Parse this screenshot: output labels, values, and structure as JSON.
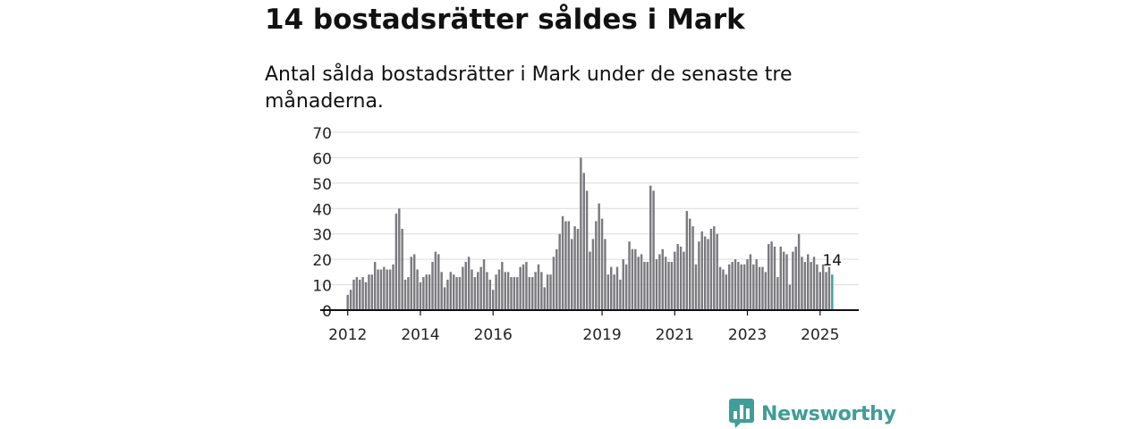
{
  "header": {
    "title": "14 bostadsrätter såldes i Mark",
    "subtitle": "Antal sålda bostadsrätter i Mark under de senaste tre månaderna."
  },
  "brand": {
    "name": "Newsworthy",
    "icon": "newsworthy-logo-icon",
    "color": "#3f9e97"
  },
  "chart_data": {
    "type": "bar",
    "start": "2012-01",
    "frequency": "monthly",
    "values": [
      6,
      8,
      12,
      13,
      12,
      13,
      11,
      14,
      14,
      19,
      16,
      16,
      17,
      16,
      16,
      18,
      38,
      40,
      32,
      12,
      13,
      21,
      22,
      16,
      11,
      13,
      14,
      14,
      19,
      23,
      22,
      15,
      9,
      12,
      15,
      14,
      13,
      13,
      17,
      19,
      21,
      16,
      13,
      15,
      17,
      20,
      15,
      12,
      8,
      14,
      16,
      19,
      15,
      15,
      13,
      13,
      13,
      17,
      18,
      19,
      13,
      13,
      15,
      18,
      15,
      9,
      14,
      14,
      21,
      24,
      30,
      37,
      35,
      35,
      28,
      33,
      32,
      60,
      54,
      47,
      23,
      28,
      35,
      42,
      36,
      28,
      14,
      17,
      14,
      17,
      12,
      20,
      18,
      27,
      24,
      24,
      21,
      22,
      19,
      19,
      49,
      47,
      20,
      22,
      24,
      21,
      19,
      19,
      23,
      26,
      25,
      23,
      39,
      36,
      33,
      18,
      27,
      31,
      29,
      28,
      32,
      33,
      30,
      17,
      16,
      14,
      18,
      19,
      20,
      19,
      18,
      18,
      20,
      22,
      18,
      20,
      17,
      17,
      15,
      26,
      27,
      25,
      13,
      25,
      23,
      22,
      10,
      23,
      25,
      30,
      21,
      19,
      22,
      19,
      21,
      18,
      15,
      18,
      15,
      17,
      14
    ],
    "highlight": {
      "last_value": 14,
      "label": "14",
      "color": "#3aa39b"
    },
    "bar_color": "#7b7b7f",
    "ylim": [
      0,
      70
    ],
    "yticks": [
      0,
      10,
      20,
      30,
      40,
      50,
      60,
      70
    ],
    "xticks": [
      "2012",
      "2014",
      "2016",
      "2019",
      "2021",
      "2023",
      "2025"
    ],
    "xlabel": "",
    "ylabel": "",
    "grid": true,
    "legend": "none"
  }
}
